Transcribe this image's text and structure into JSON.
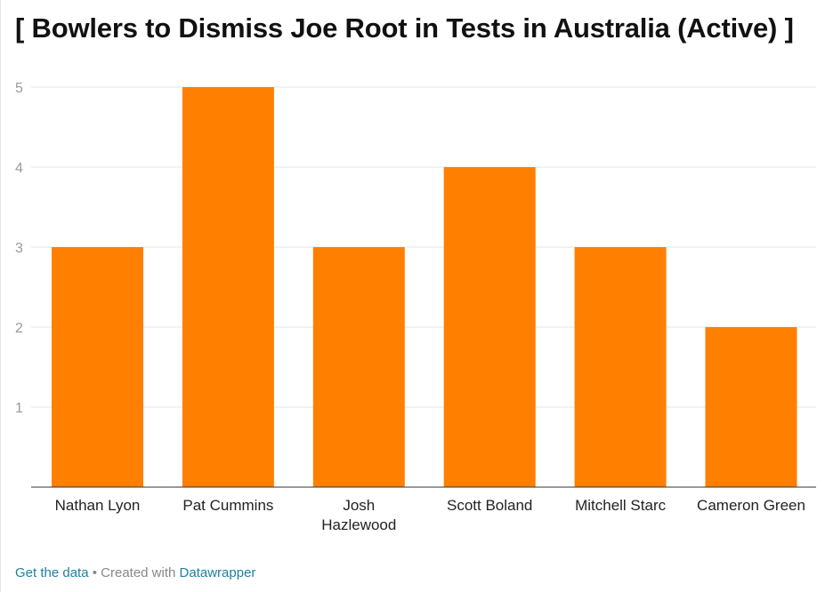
{
  "chart_data": {
    "type": "bar",
    "title": "[ Bowlers to Dismiss Joe Root in Tests in Australia (Active) ]",
    "categories": [
      [
        "Nathan Lyon"
      ],
      [
        "Pat Cummins"
      ],
      [
        "Josh",
        "Hazlewood"
      ],
      [
        "Scott Boland"
      ],
      [
        "Mitchell Starc"
      ],
      [
        "Cameron Green"
      ]
    ],
    "values": [
      3,
      5,
      3,
      4,
      3,
      2
    ],
    "yticks": [
      "1",
      "2",
      "3",
      "4",
      "5"
    ],
    "ylim": [
      0,
      5
    ],
    "grid": true,
    "bar_color": "#ff7f00"
  },
  "footer": {
    "get_data_label": "Get the data",
    "separator": " • Created with ",
    "tool_label": "Datawrapper"
  }
}
